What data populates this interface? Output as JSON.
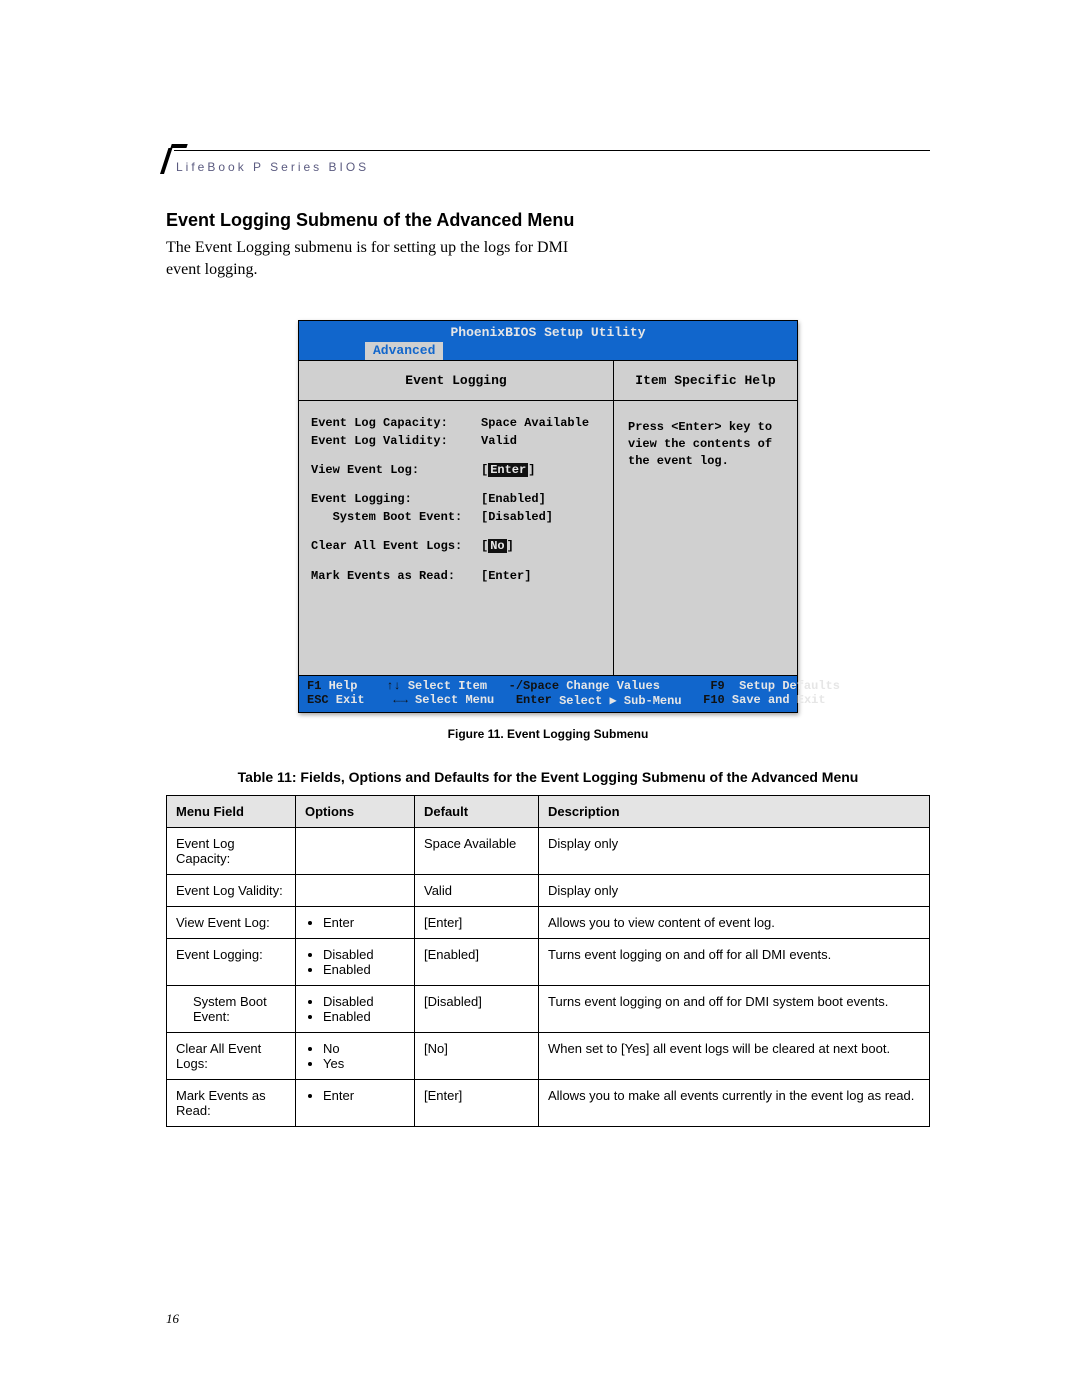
{
  "runningHead": "LifeBook P Series BIOS",
  "pageNumber": "16",
  "heading": "Event Logging Submenu of the Advanced Menu",
  "intro": "The Event Logging submenu is for setting up the logs  for DMI event logging.",
  "bios": {
    "windowTitle": "PhoenixBIOS Setup Utility",
    "activeTab": "Advanced",
    "sectionTitle": "Event Logging",
    "helpTitle": "Item Specific Help",
    "helpText": "Press <Enter> key to view the contents of the event log.",
    "rows": [
      {
        "k": "Event Log Capacity:",
        "v": "Space Available",
        "pad": false
      },
      {
        "k": "Event Log Validity:",
        "v": "Valid",
        "pad": false
      },
      {
        "k": "View Event Log:",
        "vPre": "[",
        "vInv": "Enter",
        "vPost": "]",
        "pad": true
      },
      {
        "k": "Event Logging:",
        "v": "[Enabled]",
        "pad": true
      },
      {
        "k": "   System Boot Event:",
        "v": "[Disabled]",
        "pad": false
      },
      {
        "k": "Clear All Event Logs:",
        "vPre": "[",
        "vInv": "No",
        "vPost": "]",
        "pad": true
      },
      {
        "k": "Mark Events as Read:",
        "v": "[Enter]",
        "pad": true
      }
    ],
    "footer": {
      "r1": {
        "k1": "F1",
        "l1": " Help    ",
        "arr1": "↑↓",
        "l2": " Select Item   ",
        "mid": "-/Space",
        "l3": " Change Values       ",
        "k2": "F9",
        "l4": "  Setup Defaults"
      },
      "r2": {
        "k1": "ESC",
        "l1": " Exit    ",
        "arr1": "←→",
        "l2": " Select Menu   ",
        "mid": "Enter",
        "l3": " Select ▶ Sub-Menu   ",
        "k2": "F10",
        "l4": " Save and Exit"
      }
    }
  },
  "figureCaption": "Figure 11.  Event Logging Submenu",
  "tableCaption": "Table 11: Fields, Options and Defaults for the Event Logging Submenu of the Advanced Menu",
  "table": {
    "headers": [
      "Menu Field",
      "Options",
      "Default",
      "Description"
    ],
    "rows": [
      {
        "field": "Event Log Capacity:",
        "options": [],
        "def": "Space Available",
        "desc": "Display only"
      },
      {
        "field": "Event Log Validity:",
        "options": [],
        "def": "Valid",
        "desc": "Display only"
      },
      {
        "field": "View Event Log:",
        "options": [
          "Enter"
        ],
        "def": "[Enter]",
        "desc": "Allows you to view content of event log."
      },
      {
        "field": "Event Logging:",
        "options": [
          "Disabled",
          "Enabled"
        ],
        "def": "[Enabled]",
        "desc": "Turns event logging on and off for all DMI events."
      },
      {
        "field": "System Boot Event:",
        "indent": true,
        "options": [
          "Disabled",
          "Enabled"
        ],
        "def": "[Disabled]",
        "desc": "Turns event logging on and off for DMI system boot events."
      },
      {
        "field": "Clear All Event Logs:",
        "options": [
          "No",
          "Yes"
        ],
        "def": "[No]",
        "desc": "When set to [Yes] all event logs will be cleared at next boot."
      },
      {
        "field": "Mark Events as Read:",
        "options": [
          "Enter"
        ],
        "def": "[Enter]",
        "desc": "Allows you to make all events currently in the event log as read."
      }
    ]
  }
}
